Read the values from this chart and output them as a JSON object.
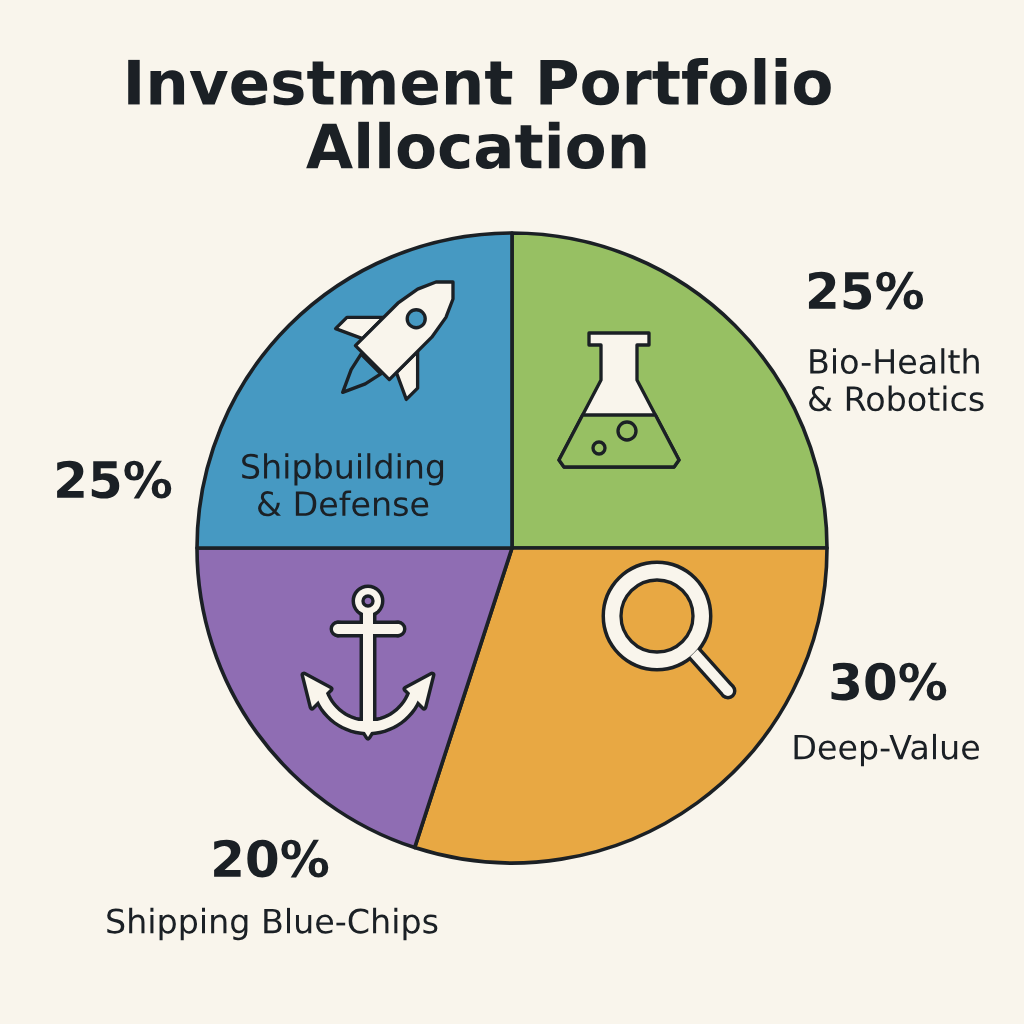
{
  "chart_data": {
    "type": "pie",
    "title": "Investment Portfolio Allocation",
    "categories": [
      "Bio-Health & Robotics",
      "Deep-Value",
      "Shipping Blue-Chips",
      "Shipbuilding & Defense"
    ],
    "values": [
      25,
      30,
      20,
      25
    ],
    "value_labels": [
      "25%",
      "30%",
      "20%",
      "25%"
    ],
    "colors": [
      "#97c063",
      "#e8a843",
      "#8f6db3",
      "#4699c2"
    ]
  }
}
